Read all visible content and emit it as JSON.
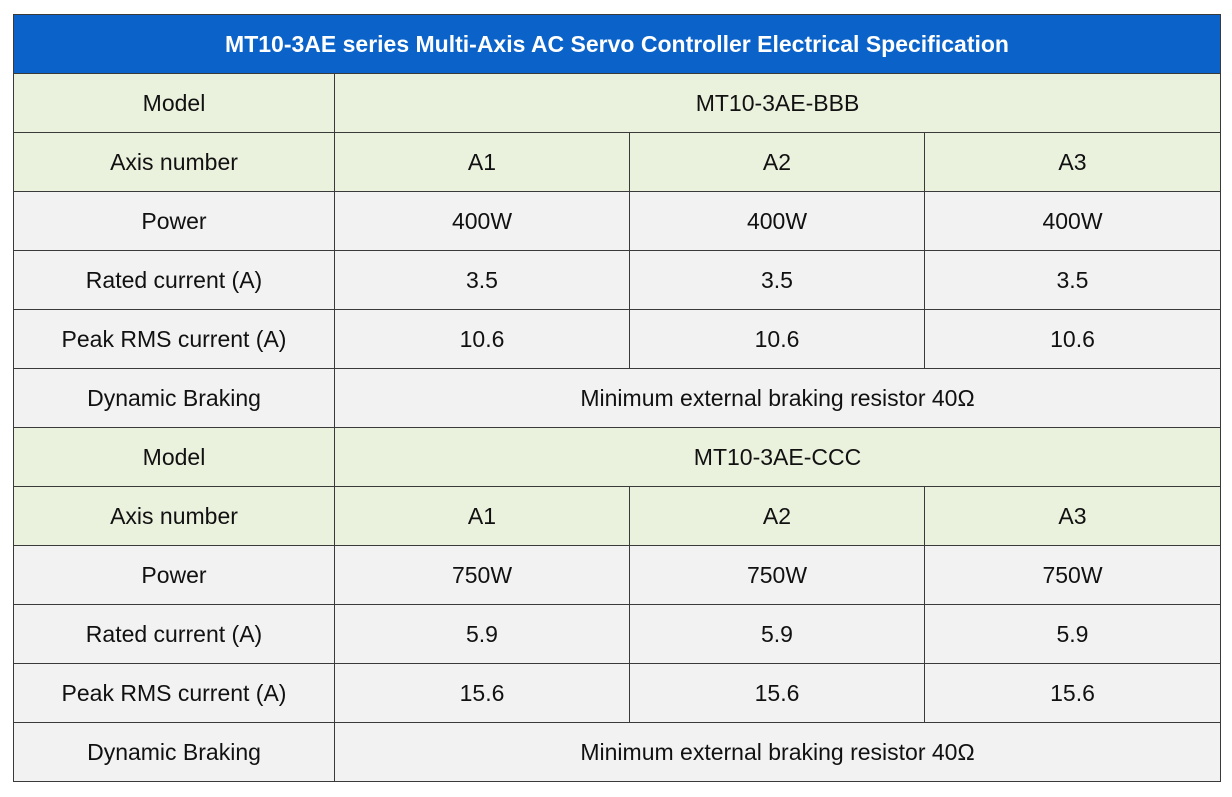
{
  "title": "MT10-3AE series Multi-Axis AC Servo Controller Electrical Specification",
  "colors": {
    "title_bg": "#0b63c9",
    "header_row_bg": "#eaf1dd",
    "body_row_bg": "#f2f2f2",
    "border": "#3a3a3a"
  },
  "sections": [
    {
      "model_label": "Model",
      "model_value": "MT10-3AE-BBB",
      "axis_label": "Axis number",
      "axes": [
        "A1",
        "A2",
        "A3"
      ],
      "power_label": "Power",
      "power": [
        "400W",
        "400W",
        "400W"
      ],
      "rated_label": "Rated current (A)",
      "rated": [
        "3.5",
        "3.5",
        "3.5"
      ],
      "peak_label": "Peak RMS current (A)",
      "peak": [
        "10.6",
        "10.6",
        "10.6"
      ],
      "braking_label": "Dynamic Braking",
      "braking_value": "Minimum external braking resistor 40Ω"
    },
    {
      "model_label": "Model",
      "model_value": "MT10-3AE-CCC",
      "axis_label": "Axis number",
      "axes": [
        "A1",
        "A2",
        "A3"
      ],
      "power_label": "Power",
      "power": [
        "750W",
        "750W",
        "750W"
      ],
      "rated_label": "Rated current (A)",
      "rated": [
        "5.9",
        "5.9",
        "5.9"
      ],
      "peak_label": "Peak RMS current (A)",
      "peak": [
        "15.6",
        "15.6",
        "15.6"
      ],
      "braking_label": "Dynamic Braking",
      "braking_value": "Minimum external braking resistor 40Ω"
    }
  ]
}
